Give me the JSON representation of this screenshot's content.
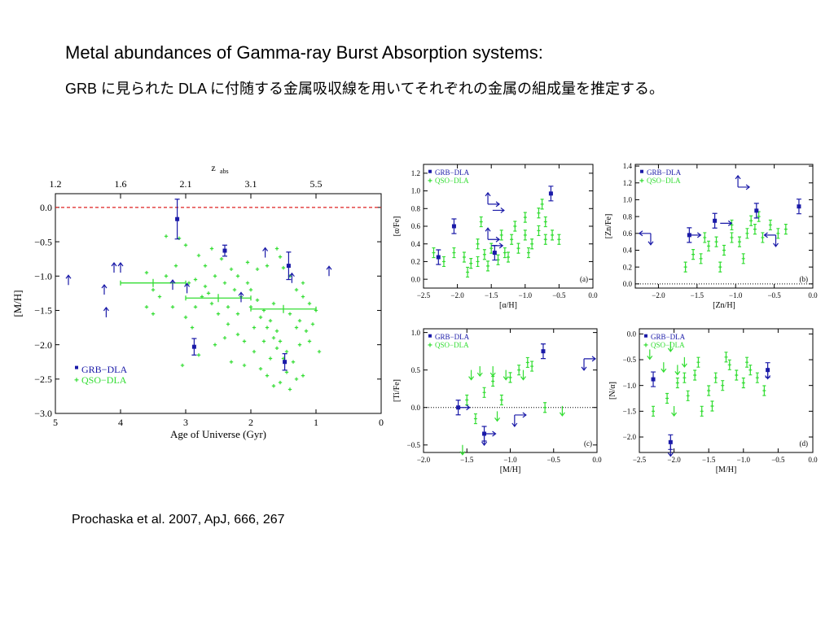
{
  "slide": {
    "title": "Metal abundances of Gamma-ray Burst Absorption systems:",
    "subtitle": "GRB に見られた DLA に付随する金属吸収線を用いてそれぞれの金属の組成量を推定する。",
    "citation": "Prochaska et al. 2007, ApJ, 666, 267"
  },
  "colors": {
    "grb": "#1a1aa8",
    "qso": "#33dd33",
    "ref_line": "#dd2222",
    "axis": "#000000"
  },
  "chart_data": [
    {
      "id": "main",
      "type": "scatter",
      "xlabel": "Age of Universe (Gyr)",
      "ylabel": "[M/H]",
      "top_xlabel": "z_abs",
      "top_xlabel_main": "z",
      "top_xlabel_sub": "abs",
      "xlim": [
        5,
        0
      ],
      "ylim": [
        -3.0,
        0.2
      ],
      "x_ticks": [
        "5",
        "4",
        "3",
        "2",
        "1",
        "0"
      ],
      "y_ticks": [
        "0.0",
        "−0.5",
        "−1.0",
        "−1.5",
        "−2.0",
        "−2.5",
        "−3.0"
      ],
      "top_ticks": [
        "1.2",
        "1.6",
        "2.1",
        "3.1",
        "5.5"
      ],
      "top_tick_ages": [
        5.0,
        4.0,
        3.0,
        2.0,
        1.0
      ],
      "legend": [
        "GRB−DLA",
        "QSO−DLA"
      ],
      "reference_line_y": 0.0,
      "grb": [
        {
          "x": 3.13,
          "y": -0.17,
          "err": 0.29
        },
        {
          "x": 2.4,
          "y": -0.63,
          "err": 0.08
        },
        {
          "x": 1.42,
          "y": -0.85,
          "err": 0.2
        },
        {
          "x": 1.48,
          "y": -2.25,
          "err": 0.12
        },
        {
          "x": 2.87,
          "y": -2.03,
          "err": 0.12
        }
      ],
      "grb_limits": [
        {
          "x": 4.8,
          "y": -1.13,
          "dir": "up"
        },
        {
          "x": 4.1,
          "y": -0.95,
          "dir": "up"
        },
        {
          "x": 4.0,
          "y": -0.95,
          "dir": "up"
        },
        {
          "x": 4.25,
          "y": -1.27,
          "dir": "up"
        },
        {
          "x": 4.22,
          "y": -1.6,
          "dir": "up"
        },
        {
          "x": 1.78,
          "y": -0.73,
          "dir": "up"
        },
        {
          "x": 1.37,
          "y": -1.1,
          "dir": "up"
        },
        {
          "x": 0.8,
          "y": -1.0,
          "dir": "up"
        },
        {
          "x": 3.2,
          "y": -1.2,
          "dir": "up"
        },
        {
          "x": 2.98,
          "y": -1.25,
          "dir": "up"
        },
        {
          "x": 2.15,
          "y": -1.38,
          "dir": "up"
        }
      ],
      "qso_binned": [
        {
          "x": 3.5,
          "y": -1.1,
          "xerr": 0.5
        },
        {
          "x": 2.5,
          "y": -1.32,
          "xerr": 0.5
        },
        {
          "x": 1.5,
          "y": -1.48,
          "xerr": 0.5
        }
      ],
      "qso": [
        [
          3.3,
          -0.42
        ],
        [
          3.1,
          -0.45
        ],
        [
          3.0,
          -0.55
        ],
        [
          2.8,
          -0.7
        ],
        [
          2.7,
          -0.85
        ],
        [
          2.6,
          -0.6
        ],
        [
          2.45,
          -0.75
        ],
        [
          2.3,
          -0.9
        ],
        [
          2.2,
          -1.0
        ],
        [
          2.05,
          -1.1
        ],
        [
          1.9,
          -0.9
        ],
        [
          1.75,
          -0.85
        ],
        [
          1.6,
          -0.6
        ],
        [
          1.55,
          -0.72
        ],
        [
          1.5,
          -0.88
        ],
        [
          1.4,
          -1.0
        ],
        [
          1.3,
          -1.2
        ],
        [
          1.2,
          -1.3
        ],
        [
          1.1,
          -1.4
        ],
        [
          1.0,
          -1.5
        ],
        [
          3.4,
          -1.3
        ],
        [
          3.2,
          -1.45
        ],
        [
          3.0,
          -1.6
        ],
        [
          2.9,
          -1.75
        ],
        [
          2.75,
          -1.3
        ],
        [
          2.6,
          -1.4
        ],
        [
          2.5,
          -1.55
        ],
        [
          2.35,
          -1.7
        ],
        [
          2.2,
          -1.85
        ],
        [
          2.1,
          -1.95
        ],
        [
          2.0,
          -1.2
        ],
        [
          1.9,
          -1.35
        ],
        [
          1.8,
          -1.5
        ],
        [
          1.7,
          -1.65
        ],
        [
          1.6,
          -1.8
        ],
        [
          1.55,
          -1.95
        ],
        [
          1.45,
          -2.1
        ],
        [
          1.35,
          -2.25
        ],
        [
          1.25,
          -2.0
        ],
        [
          1.2,
          -2.45
        ],
        [
          3.6,
          -1.45
        ],
        [
          3.5,
          -1.55
        ],
        [
          2.95,
          -1.1
        ],
        [
          2.85,
          -1.05
        ],
        [
          2.7,
          -1.15
        ],
        [
          2.55,
          -1.0
        ],
        [
          2.4,
          -1.1
        ],
        [
          2.25,
          -1.2
        ],
        [
          2.15,
          -1.3
        ],
        [
          2.0,
          -1.45
        ],
        [
          1.85,
          -1.6
        ],
        [
          1.75,
          -1.75
        ],
        [
          1.65,
          -1.9
        ],
        [
          1.6,
          -2.05
        ],
        [
          1.5,
          -2.2
        ],
        [
          1.45,
          -2.4
        ],
        [
          1.55,
          -2.55
        ],
        [
          1.65,
          -2.6
        ],
        [
          1.4,
          -2.65
        ],
        [
          1.3,
          -2.5
        ],
        [
          3.05,
          -2.3
        ],
        [
          2.8,
          -2.15
        ],
        [
          2.55,
          -2.0
        ],
        [
          2.4,
          -1.9
        ],
        [
          2.3,
          -2.25
        ],
        [
          2.1,
          -2.3
        ],
        [
          1.95,
          -2.1
        ],
        [
          1.85,
          -2.35
        ],
        [
          1.75,
          -2.45
        ],
        [
          1.7,
          -2.2
        ],
        [
          3.6,
          -0.95
        ],
        [
          3.3,
          -1.0
        ],
        [
          3.15,
          -0.85
        ],
        [
          2.65,
          -1.25
        ],
        [
          2.05,
          -0.8
        ],
        [
          1.25,
          -1.65
        ],
        [
          1.15,
          -1.8
        ],
        [
          1.05,
          -1.7
        ],
        [
          1.1,
          -1.95
        ],
        [
          0.95,
          -2.1
        ],
        [
          3.5,
          -1.2
        ],
        [
          2.85,
          -1.45
        ],
        [
          2.35,
          -1.45
        ],
        [
          2.2,
          -1.55
        ],
        [
          1.95,
          -1.75
        ],
        [
          1.8,
          -1.95
        ],
        [
          1.65,
          -1.4
        ],
        [
          1.4,
          -1.55
        ],
        [
          1.3,
          -1.75
        ],
        [
          1.2,
          -1.1
        ]
      ]
    },
    {
      "id": "a",
      "type": "scatter",
      "panel_label": "(a)",
      "xlabel": "[α/H]",
      "ylabel": "[α/Fe]",
      "xlim": [
        -2.5,
        0.0
      ],
      "ylim": [
        -0.1,
        1.3
      ],
      "x_ticks": [
        "−2.5",
        "−2.0",
        "−1.5",
        "−1.0",
        "−0.5",
        "0.0"
      ],
      "y_ticks": [
        "0.0",
        "0.2",
        "0.4",
        "0.6",
        "0.8",
        "1.0",
        "1.2"
      ],
      "legend": [
        "GRB−DLA",
        "QSO−DLA"
      ],
      "grb": [
        [
          -2.05,
          0.6
        ],
        [
          -2.28,
          0.25
        ],
        [
          -0.62,
          0.97
        ],
        [
          -1.45,
          0.3
        ]
      ],
      "grb_limits": [
        [
          -1.55,
          0.85,
          "ur"
        ],
        [
          -1.48,
          0.78,
          "r"
        ],
        [
          -1.55,
          0.45,
          "ur"
        ],
        [
          -1.5,
          0.38,
          "r"
        ]
      ],
      "qso": [
        [
          -2.35,
          0.3
        ],
        [
          -2.2,
          0.2
        ],
        [
          -2.05,
          0.3
        ],
        [
          -1.9,
          0.25
        ],
        [
          -1.8,
          0.18
        ],
        [
          -1.7,
          0.4
        ],
        [
          -1.6,
          0.28
        ],
        [
          -1.5,
          0.35
        ],
        [
          -1.4,
          0.22
        ],
        [
          -1.3,
          0.3
        ],
        [
          -1.2,
          0.45
        ],
        [
          -1.1,
          0.35
        ],
        [
          -1.0,
          0.5
        ],
        [
          -0.9,
          0.4
        ],
        [
          -0.8,
          0.55
        ],
        [
          -0.7,
          0.45
        ],
        [
          -0.6,
          0.5
        ],
        [
          -0.5,
          0.45
        ],
        [
          -0.8,
          0.75
        ],
        [
          -0.75,
          0.85
        ],
        [
          -1.0,
          0.7
        ],
        [
          -1.15,
          0.6
        ],
        [
          -1.65,
          0.65
        ],
        [
          -1.7,
          0.2
        ],
        [
          -1.25,
          0.25
        ],
        [
          -0.95,
          0.3
        ],
        [
          -0.7,
          0.65
        ],
        [
          -1.35,
          0.5
        ],
        [
          -1.55,
          0.15
        ],
        [
          -1.85,
          0.08
        ]
      ]
    },
    {
      "id": "b",
      "type": "scatter",
      "panel_label": "(b)",
      "xlabel": "[Zn/H]",
      "ylabel": "[Zn/Fe]",
      "xlim": [
        -2.3,
        0.0
      ],
      "ylim": [
        -0.05,
        1.42
      ],
      "x_ticks": [
        "−2.0",
        "−1.5",
        "−1.0",
        "−0.5",
        "0.0"
      ],
      "y_ticks": [
        "0.0",
        "0.2",
        "0.4",
        "0.6",
        "0.8",
        "1.0",
        "1.2",
        "1.4"
      ],
      "legend": [
        "GRB−DLA",
        "QSO−DLA"
      ],
      "reference_line_y": 0.0,
      "grb": [
        [
          -1.6,
          0.58
        ],
        [
          -0.73,
          0.87
        ],
        [
          -0.18,
          0.92
        ],
        [
          -1.27,
          0.75
        ]
      ],
      "grb_limits": [
        [
          -2.1,
          0.6,
          "dl"
        ],
        [
          -1.6,
          0.58,
          "r"
        ],
        [
          -1.2,
          0.72,
          "r"
        ],
        [
          -0.97,
          1.15,
          "ur"
        ],
        [
          -0.48,
          0.58,
          "dl"
        ]
      ],
      "qso": [
        [
          -1.65,
          0.2
        ],
        [
          -1.55,
          0.35
        ],
        [
          -1.45,
          0.3
        ],
        [
          -1.35,
          0.45
        ],
        [
          -1.25,
          0.5
        ],
        [
          -1.15,
          0.4
        ],
        [
          -1.05,
          0.55
        ],
        [
          -0.95,
          0.5
        ],
        [
          -0.85,
          0.6
        ],
        [
          -0.75,
          0.65
        ],
        [
          -0.65,
          0.55
        ],
        [
          -0.55,
          0.7
        ],
        [
          -0.45,
          0.6
        ],
        [
          -0.35,
          0.65
        ],
        [
          -1.2,
          0.2
        ],
        [
          -0.9,
          0.3
        ],
        [
          -0.8,
          0.75
        ],
        [
          -0.7,
          0.8
        ],
        [
          -1.4,
          0.55
        ],
        [
          -1.05,
          0.7
        ]
      ]
    },
    {
      "id": "c",
      "type": "scatter",
      "panel_label": "(c)",
      "xlabel": "[M/H]",
      "ylabel": "[Ti/Fe]",
      "xlim": [
        -2.0,
        0.0
      ],
      "ylim": [
        -0.6,
        1.05
      ],
      "x_ticks": [
        "−2.0",
        "−1.5",
        "−1.0",
        "−0.5",
        "0.0"
      ],
      "y_ticks": [
        "−0.5",
        "0.0",
        "0.5",
        "1.0"
      ],
      "legend": [
        "GRB−DLA",
        "QSO−DLA"
      ],
      "reference_line_y": 0.0,
      "grb": [
        [
          -0.62,
          0.75
        ],
        [
          -1.3,
          -0.35
        ],
        [
          -1.6,
          0.0
        ]
      ],
      "grb_limits": [
        [
          -1.6,
          0.0,
          "r"
        ],
        [
          -1.3,
          -0.35,
          "dr"
        ],
        [
          -0.95,
          -0.1,
          "dr"
        ],
        [
          -0.15,
          0.65,
          "dr"
        ]
      ],
      "qso": [
        [
          -1.5,
          0.1
        ],
        [
          -1.4,
          -0.15
        ],
        [
          -1.3,
          0.2
        ],
        [
          -1.2,
          0.35
        ],
        [
          -1.0,
          0.4
        ],
        [
          -0.9,
          0.5
        ],
        [
          -0.75,
          0.55
        ],
        [
          -0.6,
          0.0
        ],
        [
          -1.1,
          0.1
        ],
        [
          -0.8,
          0.6
        ]
      ],
      "qso_upper": [
        [
          -1.55,
          -0.5
        ],
        [
          -1.45,
          0.5
        ],
        [
          -1.35,
          0.55
        ],
        [
          -1.2,
          0.55
        ],
        [
          -1.15,
          -0.05
        ],
        [
          -1.05,
          0.5
        ],
        [
          -0.85,
          0.5
        ],
        [
          -0.4,
          0.02
        ]
      ]
    },
    {
      "id": "d",
      "type": "scatter",
      "panel_label": "(d)",
      "xlabel": "[M/H]",
      "ylabel": "[N/α]",
      "xlim": [
        -2.5,
        0.0
      ],
      "ylim": [
        -2.3,
        0.1
      ],
      "x_ticks": [
        "−2.5",
        "−2.0",
        "−1.5",
        "−1.0",
        "−0.5",
        "0.0"
      ],
      "y_ticks": [
        "0.0",
        "−0.5",
        "−1.0",
        "−1.5",
        "−2.0"
      ],
      "legend": [
        "GRB−DLA",
        "QSO−DLA"
      ],
      "grb": [
        [
          -2.3,
          -0.88
        ],
        [
          -0.65,
          -0.7
        ],
        [
          -2.05,
          -2.1
        ]
      ],
      "grb_limits": [
        [
          -2.05,
          -2.15,
          "d"
        ],
        [
          -0.65,
          -0.65,
          "d"
        ]
      ],
      "qso": [
        [
          -2.3,
          -1.5
        ],
        [
          -2.1,
          -1.25
        ],
        [
          -1.95,
          -0.95
        ],
        [
          -1.8,
          -1.2
        ],
        [
          -1.7,
          -0.8
        ],
        [
          -1.6,
          -1.5
        ],
        [
          -1.5,
          -1.1
        ],
        [
          -1.4,
          -0.85
        ],
        [
          -1.3,
          -1.0
        ],
        [
          -1.2,
          -0.6
        ],
        [
          -1.1,
          -0.8
        ],
        [
          -1.0,
          -0.95
        ],
        [
          -0.9,
          -0.7
        ],
        [
          -0.8,
          -0.85
        ],
        [
          -0.7,
          -1.1
        ],
        [
          -1.45,
          -1.4
        ],
        [
          -1.65,
          -0.55
        ],
        [
          -1.85,
          -0.85
        ],
        [
          -1.25,
          -0.45
        ],
        [
          -0.95,
          -0.55
        ]
      ],
      "qso_upper": [
        [
          -2.35,
          -0.3
        ],
        [
          -2.15,
          -0.55
        ],
        [
          -2.05,
          -0.15
        ],
        [
          -1.95,
          -0.6
        ],
        [
          -2.0,
          -1.4
        ],
        [
          -1.85,
          -0.45
        ]
      ]
    }
  ]
}
